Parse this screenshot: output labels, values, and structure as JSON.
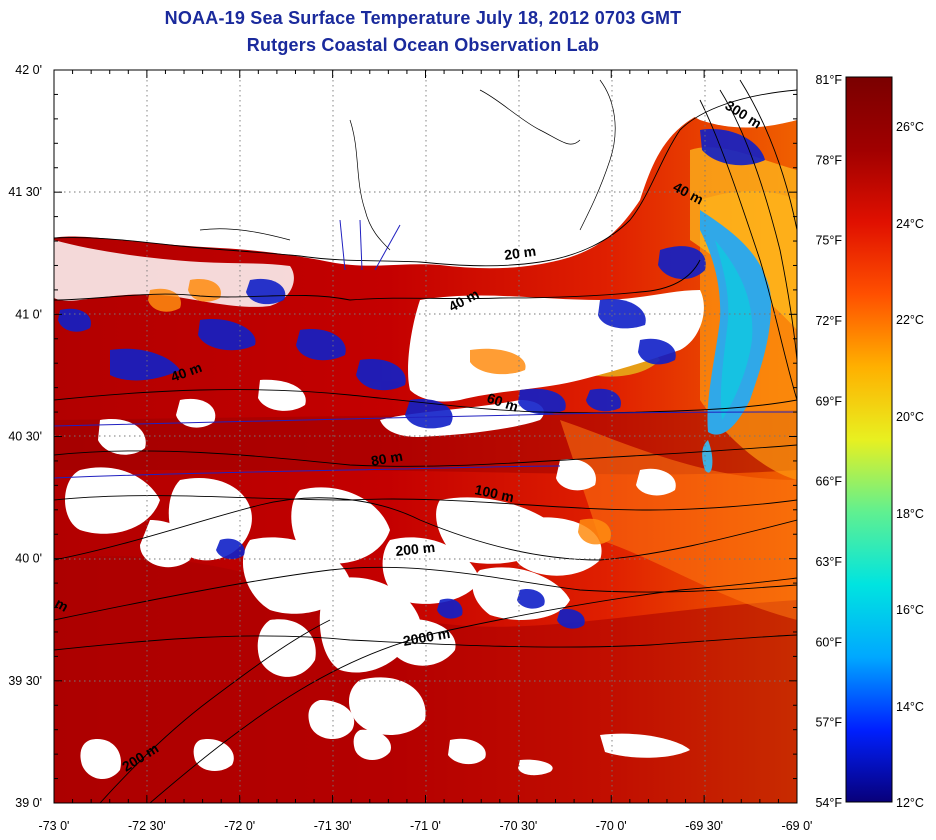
{
  "title": "NOAA-19 Sea Surface Temperature July 18, 2012 0703 GMT",
  "subtitle": "Rutgers Coastal Ocean Observation Lab",
  "map": {
    "lon_range": [
      -73.0,
      -69.0
    ],
    "lat_range": [
      39.0,
      42.0
    ],
    "grid": true,
    "lat_ticks": [
      "42 0'",
      "41 30'",
      "41 0'",
      "40 30'",
      "40 0'",
      "39 30'",
      "39 0'"
    ],
    "lon_ticks": [
      "-73 0'",
      "-72 30'",
      "-72 0'",
      "-71 30'",
      "-71 0'",
      "-70 30'",
      "-70 0'",
      "-69 30'",
      "-69 0'"
    ],
    "fahrenheit_ticks": [
      "81°F",
      "78°F",
      "75°F",
      "72°F",
      "69°F",
      "66°F",
      "63°F",
      "60°F",
      "57°F",
      "54°F"
    ],
    "celsius_ticks": [
      "26°C",
      "24°C",
      "22°C",
      "20°C",
      "18°C",
      "16°C",
      "14°C",
      "12°C"
    ],
    "contour_labels": [
      "300 m",
      "40 m",
      "20 m",
      "40 m",
      "40 m",
      "60 m",
      "80 m",
      "100 m",
      "200 m",
      "2000 m",
      "200 m",
      "m"
    ]
  },
  "colorbar": {
    "colors": [
      "#08007a",
      "#0020ff",
      "#00a8ff",
      "#00e4e0",
      "#60f090",
      "#e8f020",
      "#ffb000",
      "#ff5000",
      "#e01000",
      "#a00000",
      "#7a0000"
    ]
  }
}
